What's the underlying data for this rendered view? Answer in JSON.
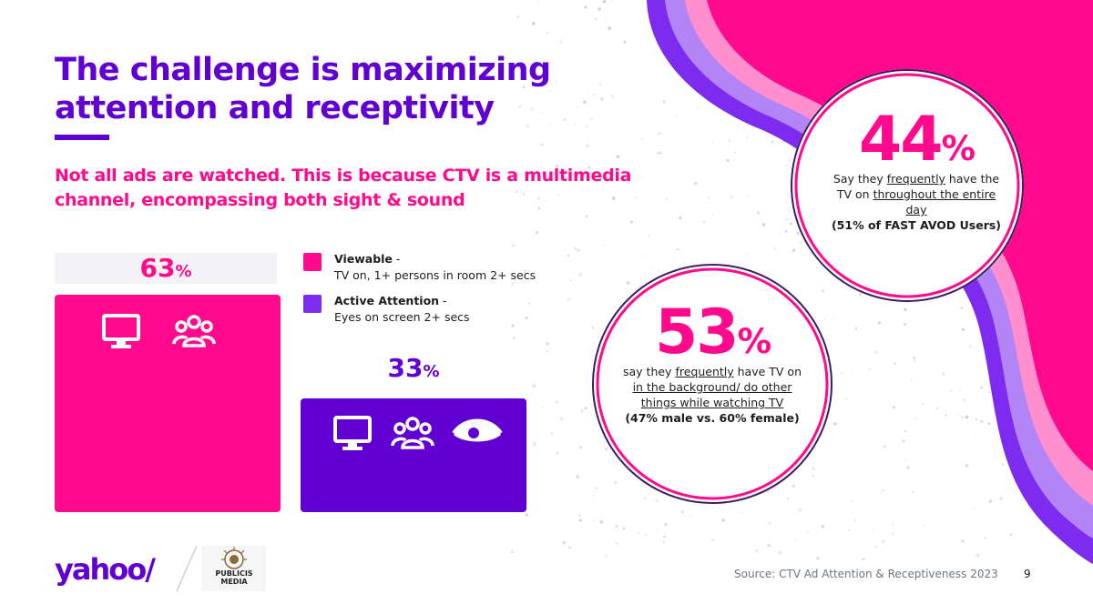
{
  "title": "The challenge is maximizing attention and receptivity",
  "subtitle": "Not all ads are watched. This is because CTV is a multimedia channel, encompassing both sight & sound",
  "colors": {
    "pink": "#ff0a8c",
    "purple": "#6001d2",
    "light_purple": "#b07ef0",
    "light_pink": "#ff8fd0"
  },
  "chart_data": {
    "type": "bar",
    "unit": "%",
    "categories": [
      "Viewable",
      "Active Attention"
    ],
    "values": [
      63,
      33
    ],
    "value_labels": [
      "63",
      "33"
    ],
    "ylim": [
      0,
      63
    ],
    "series": [
      {
        "name": "Viewable",
        "value": 63,
        "color": "#ff0a8c",
        "icons": [
          "tv-icon",
          "people-icon"
        ]
      },
      {
        "name": "Active Attention",
        "value": 33,
        "color": "#6001d2",
        "icons": [
          "tv-icon",
          "people-icon",
          "eye-icon"
        ]
      }
    ],
    "legend": [
      {
        "name": "Viewable",
        "separator": " -",
        "description": "TV on, 1+ persons in room 2+ secs",
        "color": "#ff0a8c"
      },
      {
        "name": "Active Attention",
        "separator": " -",
        "description": "Eyes on screen 2+ secs",
        "color": "#6001d2"
      }
    ]
  },
  "stats": [
    {
      "value": "44",
      "unit": "%",
      "desc_parts": [
        "Say they ",
        "frequently",
        " have the TV on ",
        "throughout the entire day"
      ],
      "note": "(51% of FAST AVOD Users)"
    },
    {
      "value": "53",
      "unit": "%",
      "desc_parts": [
        "say they ",
        "frequently",
        " have TV on ",
        "in the background/ do other things while watching TV"
      ],
      "note": "(47% male vs. 60% female)"
    }
  ],
  "footer": {
    "logo_yahoo": "yahoo/",
    "logo_publicis": "PUBLICIS MEDIA",
    "source": "Source: CTV Ad Attention & Receptiveness 2023",
    "page": "9"
  }
}
